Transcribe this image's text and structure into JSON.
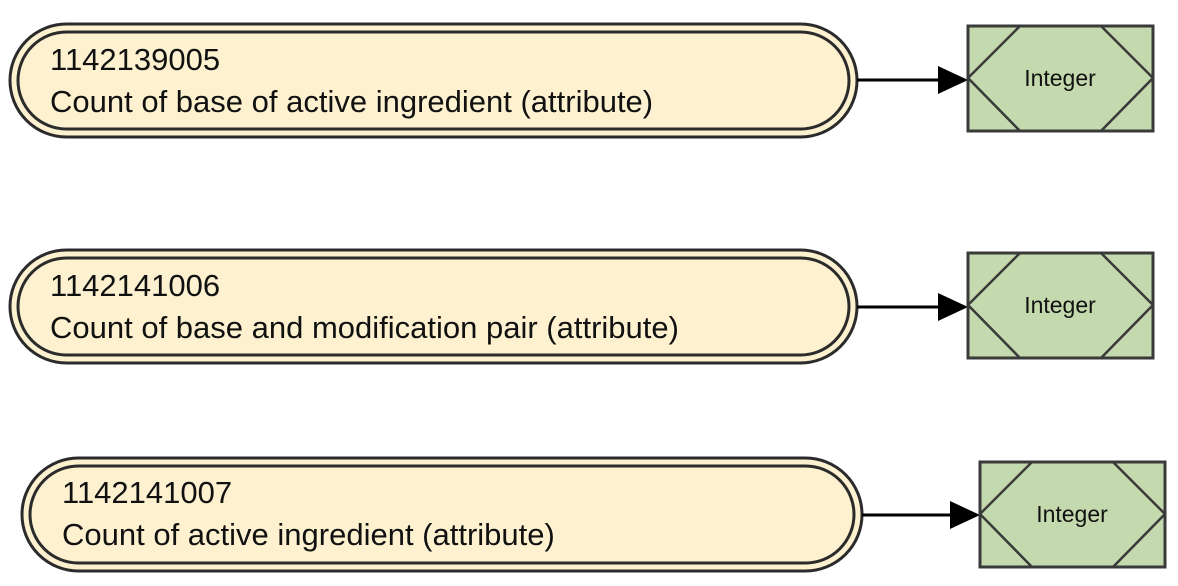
{
  "colors": {
    "attribute_fill": "#fdf1d0",
    "attribute_stroke": "#2b2b2b",
    "type_fill": "#c4d9ad",
    "type_stroke": "#3a3a3a",
    "arrow": "#000000"
  },
  "rows": [
    {
      "attribute": {
        "code": "1142139005",
        "name": "Count of base of active ingredient (attribute)"
      },
      "type": {
        "label": "Integer"
      }
    },
    {
      "attribute": {
        "code": "1142141006",
        "name": "Count of base and modification pair (attribute)"
      },
      "type": {
        "label": "Integer"
      }
    },
    {
      "attribute": {
        "code": "1142141007",
        "name": "Count of active ingredient (attribute)"
      },
      "type": {
        "label": "Integer"
      }
    }
  ]
}
